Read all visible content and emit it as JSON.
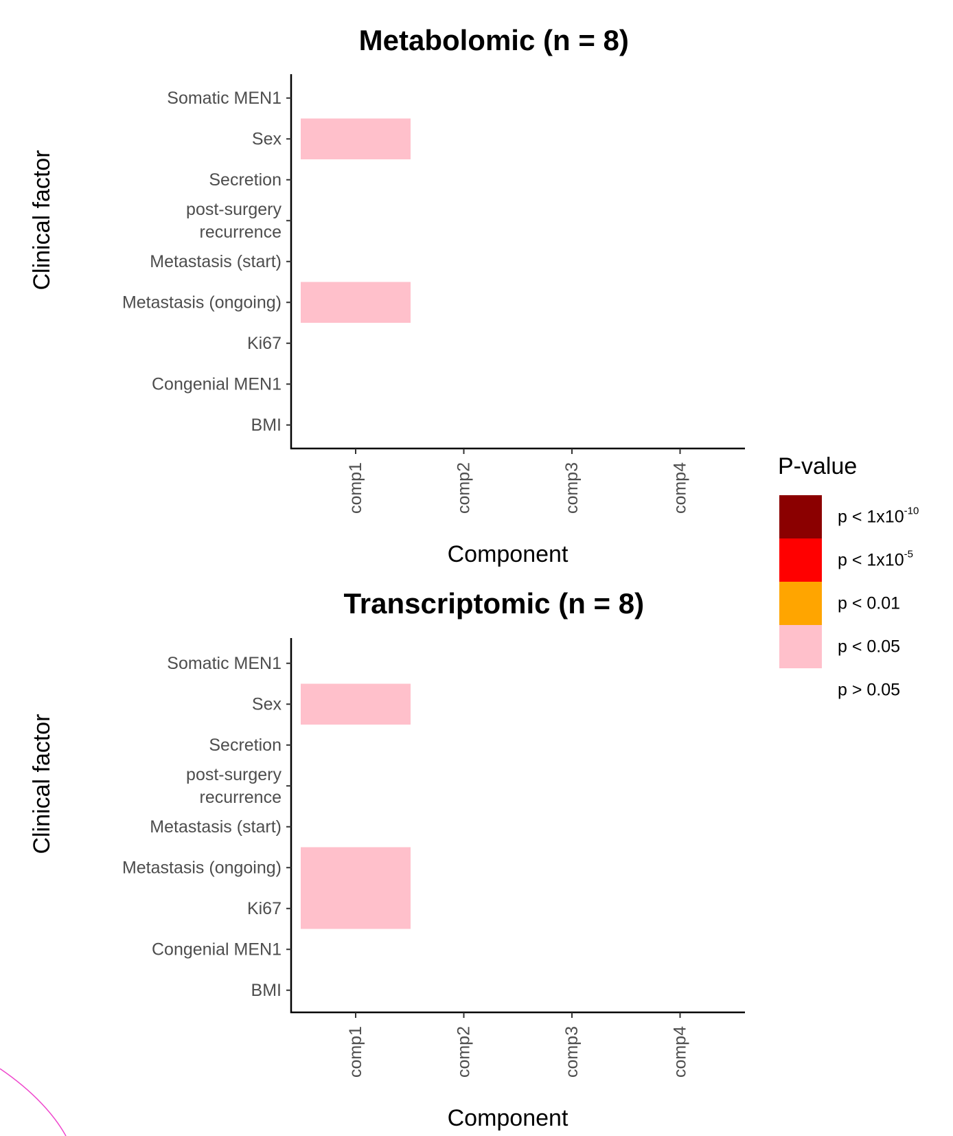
{
  "chart_data": [
    {
      "type": "heatmap",
      "title": "Metabolomic (n = 8)",
      "xlabel": "Component",
      "ylabel": "Clinical factor",
      "x_categories": [
        "comp1",
        "comp2",
        "comp3",
        "comp4"
      ],
      "y_categories": [
        "Somatic MEN1",
        "Sex",
        "Secretion",
        "post-surgery\nrecurrence",
        "Metastasis (start)",
        "Metastasis (ongoing)",
        "Ki67",
        "Congenial MEN1",
        "BMI"
      ],
      "cells": [
        {
          "x": "comp1",
          "y": "Sex",
          "class": "p < 0.05"
        },
        {
          "x": "comp1",
          "y": "Metastasis (ongoing)",
          "class": "p < 0.05"
        }
      ]
    },
    {
      "type": "heatmap",
      "title": "Transcriptomic (n = 8)",
      "xlabel": "Component",
      "ylabel": "Clinical factor",
      "x_categories": [
        "comp1",
        "comp2",
        "comp3",
        "comp4"
      ],
      "y_categories": [
        "Somatic MEN1",
        "Sex",
        "Secretion",
        "post-surgery\nrecurrence",
        "Metastasis (start)",
        "Metastasis (ongoing)",
        "Ki67",
        "Congenial MEN1",
        "BMI"
      ],
      "cells": [
        {
          "x": "comp1",
          "y": "Sex",
          "class": "p < 0.05"
        },
        {
          "x": "comp1",
          "y": "Metastasis (ongoing)",
          "class": "p < 0.05"
        },
        {
          "x": "comp1",
          "y": "Ki67",
          "class": "p < 0.05"
        }
      ]
    }
  ],
  "legend": {
    "title": "P-value",
    "placement": "right",
    "entries": [
      {
        "base": "p < 1x10",
        "sup": "-10",
        "label": "p < 1x10-10",
        "color": "#8b0000"
      },
      {
        "base": "p < 1x10",
        "sup": "-5",
        "label": "p < 1x10-5",
        "color": "#ff0000"
      },
      {
        "base": "p < 0.01",
        "sup": "",
        "label": "p < 0.01",
        "color": "#ffa500"
      },
      {
        "base": "p < 0.05",
        "sup": "",
        "label": "p < 0.05",
        "color": "#ffc0cb"
      },
      {
        "base": "p > 0.05",
        "sup": "",
        "label": "p > 0.05",
        "color": "#ffffff"
      }
    ]
  }
}
